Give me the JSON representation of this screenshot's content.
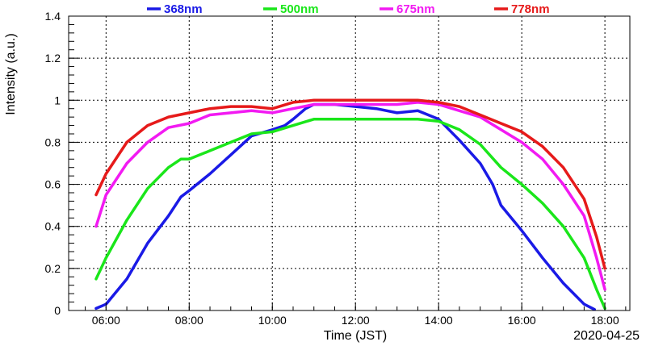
{
  "chart_data": {
    "type": "line",
    "title": "",
    "xlabel": "Time (JST)",
    "ylabel": "Intensity (a.u.)",
    "date_label": "2020-04-25",
    "x_unit": "hour (JST)",
    "xlim": [
      5.1,
      18.6
    ],
    "ylim": [
      0,
      1.4
    ],
    "grid": true,
    "legend_position": "top",
    "x_ticks": [
      6,
      8,
      10,
      12,
      14,
      16,
      18
    ],
    "x_tick_labels": [
      "06:00",
      "08:00",
      "10:00",
      "12:00",
      "14:00",
      "16:00",
      "18:00"
    ],
    "y_ticks": [
      0,
      0.2,
      0.4,
      0.6,
      0.8,
      1,
      1.2,
      1.4
    ],
    "y_tick_labels": [
      "0",
      "0.2",
      "0.4",
      "0.6",
      "0.8",
      "1",
      "1.2",
      "1.4"
    ],
    "series": [
      {
        "name": "368nm",
        "color": "#1a1ae6",
        "points": [
          [
            5.76,
            0.01
          ],
          [
            6.0,
            0.03
          ],
          [
            6.5,
            0.15
          ],
          [
            7.0,
            0.32
          ],
          [
            7.5,
            0.45
          ],
          [
            7.8,
            0.54
          ],
          [
            8.0,
            0.57
          ],
          [
            8.5,
            0.65
          ],
          [
            9.0,
            0.74
          ],
          [
            9.5,
            0.83
          ],
          [
            10.0,
            0.86
          ],
          [
            10.3,
            0.88
          ],
          [
            10.5,
            0.91
          ],
          [
            10.8,
            0.96
          ],
          [
            11.0,
            0.98
          ],
          [
            11.5,
            0.98
          ],
          [
            12.0,
            0.97
          ],
          [
            12.5,
            0.96
          ],
          [
            13.0,
            0.94
          ],
          [
            13.5,
            0.95
          ],
          [
            14.0,
            0.91
          ],
          [
            14.5,
            0.81
          ],
          [
            15.0,
            0.7
          ],
          [
            15.3,
            0.6
          ],
          [
            15.5,
            0.5
          ],
          [
            16.0,
            0.38
          ],
          [
            16.5,
            0.25
          ],
          [
            17.0,
            0.13
          ],
          [
            17.5,
            0.03
          ],
          [
            17.75,
            0.005
          ]
        ]
      },
      {
        "name": "500nm",
        "color": "#1ae61a",
        "points": [
          [
            5.76,
            0.15
          ],
          [
            6.0,
            0.25
          ],
          [
            6.5,
            0.43
          ],
          [
            7.0,
            0.58
          ],
          [
            7.5,
            0.68
          ],
          [
            7.8,
            0.72
          ],
          [
            8.0,
            0.72
          ],
          [
            8.5,
            0.76
          ],
          [
            9.0,
            0.8
          ],
          [
            9.5,
            0.84
          ],
          [
            10.0,
            0.85
          ],
          [
            10.5,
            0.88
          ],
          [
            11.0,
            0.91
          ],
          [
            11.5,
            0.91
          ],
          [
            12.0,
            0.91
          ],
          [
            12.5,
            0.91
          ],
          [
            13.0,
            0.91
          ],
          [
            13.5,
            0.91
          ],
          [
            14.0,
            0.9
          ],
          [
            14.5,
            0.86
          ],
          [
            15.0,
            0.79
          ],
          [
            15.5,
            0.68
          ],
          [
            16.0,
            0.6
          ],
          [
            16.5,
            0.51
          ],
          [
            17.0,
            0.4
          ],
          [
            17.5,
            0.25
          ],
          [
            17.8,
            0.1
          ],
          [
            18.0,
            0.01
          ]
        ]
      },
      {
        "name": "675nm",
        "color": "#f21af2",
        "points": [
          [
            5.76,
            0.4
          ],
          [
            6.0,
            0.55
          ],
          [
            6.5,
            0.7
          ],
          [
            7.0,
            0.8
          ],
          [
            7.5,
            0.87
          ],
          [
            8.0,
            0.89
          ],
          [
            8.5,
            0.93
          ],
          [
            9.0,
            0.94
          ],
          [
            9.5,
            0.95
          ],
          [
            10.0,
            0.94
          ],
          [
            10.5,
            0.96
          ],
          [
            11.0,
            0.98
          ],
          [
            11.5,
            0.98
          ],
          [
            12.0,
            0.98
          ],
          [
            12.5,
            0.98
          ],
          [
            13.0,
            0.98
          ],
          [
            13.5,
            0.99
          ],
          [
            14.0,
            0.98
          ],
          [
            14.5,
            0.95
          ],
          [
            15.0,
            0.92
          ],
          [
            15.5,
            0.86
          ],
          [
            16.0,
            0.8
          ],
          [
            16.5,
            0.72
          ],
          [
            17.0,
            0.6
          ],
          [
            17.5,
            0.45
          ],
          [
            17.8,
            0.25
          ],
          [
            18.0,
            0.1
          ]
        ]
      },
      {
        "name": "778nm",
        "color": "#e61a1a",
        "points": [
          [
            5.76,
            0.55
          ],
          [
            6.0,
            0.65
          ],
          [
            6.5,
            0.8
          ],
          [
            7.0,
            0.88
          ],
          [
            7.5,
            0.92
          ],
          [
            8.0,
            0.94
          ],
          [
            8.5,
            0.96
          ],
          [
            9.0,
            0.97
          ],
          [
            9.5,
            0.97
          ],
          [
            10.0,
            0.96
          ],
          [
            10.5,
            0.99
          ],
          [
            11.0,
            1.0
          ],
          [
            11.5,
            1.0
          ],
          [
            12.0,
            1.0
          ],
          [
            12.5,
            1.0
          ],
          [
            13.0,
            1.0
          ],
          [
            13.5,
            1.0
          ],
          [
            14.0,
            0.99
          ],
          [
            14.5,
            0.97
          ],
          [
            15.0,
            0.93
          ],
          [
            15.5,
            0.89
          ],
          [
            16.0,
            0.85
          ],
          [
            16.5,
            0.78
          ],
          [
            17.0,
            0.68
          ],
          [
            17.5,
            0.53
          ],
          [
            17.8,
            0.35
          ],
          [
            18.0,
            0.2
          ]
        ]
      }
    ]
  }
}
